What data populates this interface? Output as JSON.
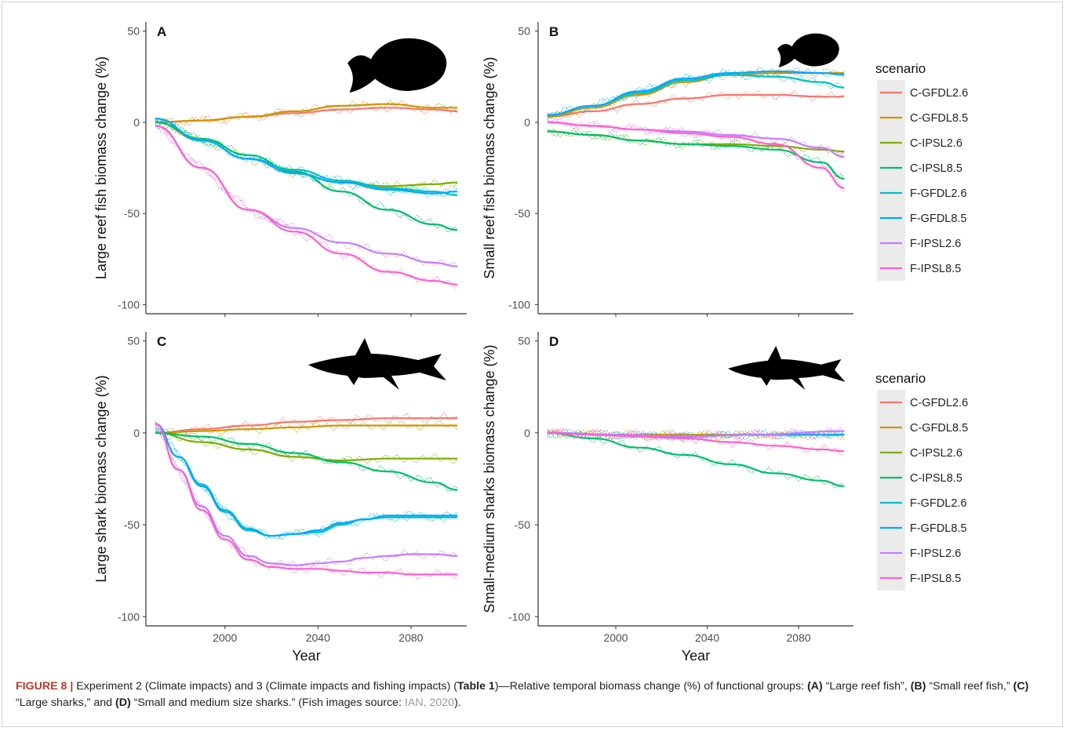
{
  "chart_data": [
    {
      "type": "line",
      "panel": "A",
      "xlabel": "",
      "ylabel": "Large reef fish biomass change (%)",
      "ylim": [
        -105,
        55
      ],
      "xlim": [
        1966,
        2104
      ],
      "x_ticks": [
        "2000",
        "2040",
        "2080"
      ],
      "y_ticks": [
        "50",
        "0",
        "-50",
        "-100"
      ],
      "icon": "fish-large-silhouette",
      "series": [
        {
          "name": "C-GFDL2.6",
          "x": [
            1970,
            1990,
            2010,
            2030,
            2050,
            2070,
            2090,
            2100
          ],
          "values": [
            0,
            1,
            3,
            5,
            7,
            8,
            7,
            6
          ]
        },
        {
          "name": "C-GFDL8.5",
          "x": [
            1970,
            1990,
            2010,
            2030,
            2050,
            2070,
            2090,
            2100
          ],
          "values": [
            0,
            1,
            3,
            6,
            9,
            10,
            8,
            8
          ]
        },
        {
          "name": "C-IPSL2.6",
          "x": [
            1970,
            1990,
            2010,
            2030,
            2050,
            2070,
            2090,
            2100
          ],
          "values": [
            0,
            -10,
            -20,
            -28,
            -33,
            -35,
            -34,
            -33
          ]
        },
        {
          "name": "C-IPSL8.5",
          "x": [
            1970,
            1990,
            2010,
            2030,
            2050,
            2070,
            2090,
            2100
          ],
          "values": [
            0,
            -9,
            -18,
            -27,
            -38,
            -48,
            -56,
            -59
          ]
        },
        {
          "name": "F-GFDL2.6",
          "x": [
            1970,
            1990,
            2010,
            2030,
            2050,
            2070,
            2090,
            2100
          ],
          "values": [
            2,
            -10,
            -20,
            -26,
            -32,
            -36,
            -38,
            -40
          ]
        },
        {
          "name": "F-GFDL8.5",
          "x": [
            1970,
            1990,
            2010,
            2030,
            2050,
            2070,
            2090,
            2100
          ],
          "values": [
            2,
            -10,
            -20,
            -28,
            -33,
            -37,
            -39,
            -38
          ]
        },
        {
          "name": "F-IPSL2.6",
          "x": [
            1970,
            1990,
            2010,
            2030,
            2050,
            2070,
            2090,
            2100
          ],
          "values": [
            -2,
            -25,
            -48,
            -58,
            -66,
            -72,
            -77,
            -79
          ]
        },
        {
          "name": "F-IPSL8.5",
          "x": [
            1970,
            1990,
            2010,
            2030,
            2050,
            2070,
            2090,
            2100
          ],
          "values": [
            -2,
            -25,
            -48,
            -60,
            -72,
            -82,
            -87,
            -89
          ]
        }
      ]
    },
    {
      "type": "line",
      "panel": "B",
      "xlabel": "",
      "ylabel": "Small reef fish biomass change (%)",
      "ylim": [
        -105,
        55
      ],
      "xlim": [
        1966,
        2104
      ],
      "x_ticks": [
        "2000",
        "2040",
        "2080"
      ],
      "y_ticks": [
        "50",
        "0",
        "-50",
        "-100"
      ],
      "icon": "fish-small-silhouette",
      "series": [
        {
          "name": "C-GFDL2.6",
          "x": [
            1970,
            1990,
            2010,
            2030,
            2050,
            2070,
            2090,
            2100
          ],
          "values": [
            3,
            6,
            10,
            13,
            15,
            15,
            14,
            14
          ]
        },
        {
          "name": "C-GFDL8.5",
          "x": [
            1970,
            1990,
            2010,
            2030,
            2050,
            2070,
            2090,
            2100
          ],
          "values": [
            3,
            8,
            15,
            22,
            26,
            27,
            27,
            27
          ]
        },
        {
          "name": "C-IPSL2.6",
          "x": [
            1970,
            1990,
            2010,
            2030,
            2050,
            2070,
            2090,
            2100
          ],
          "values": [
            -5,
            -7,
            -10,
            -12,
            -12,
            -13,
            -15,
            -16
          ]
        },
        {
          "name": "C-IPSL8.5",
          "x": [
            1970,
            1990,
            2010,
            2030,
            2050,
            2070,
            2090,
            2100
          ],
          "values": [
            -5,
            -7,
            -10,
            -12,
            -13,
            -15,
            -22,
            -31
          ]
        },
        {
          "name": "F-GFDL2.6",
          "x": [
            1970,
            1990,
            2010,
            2030,
            2050,
            2070,
            2090,
            2100
          ],
          "values": [
            4,
            9,
            16,
            23,
            26,
            25,
            22,
            19
          ]
        },
        {
          "name": "F-GFDL8.5",
          "x": [
            1970,
            1990,
            2010,
            2030,
            2050,
            2070,
            2090,
            2100
          ],
          "values": [
            4,
            9,
            17,
            24,
            27,
            28,
            27,
            26
          ]
        },
        {
          "name": "F-IPSL2.6",
          "x": [
            1970,
            1990,
            2010,
            2030,
            2050,
            2070,
            2090,
            2100
          ],
          "values": [
            0,
            -2,
            -4,
            -5,
            -7,
            -9,
            -14,
            -19
          ]
        },
        {
          "name": "F-IPSL8.5",
          "x": [
            1970,
            1990,
            2010,
            2030,
            2050,
            2070,
            2090,
            2100
          ],
          "values": [
            0,
            -2,
            -4,
            -6,
            -8,
            -12,
            -25,
            -36
          ]
        }
      ]
    },
    {
      "type": "line",
      "panel": "C",
      "xlabel": "Year",
      "ylabel": "Large shark biomass change (%)",
      "ylim": [
        -105,
        55
      ],
      "xlim": [
        1966,
        2104
      ],
      "x_ticks": [
        "2000",
        "2040",
        "2080"
      ],
      "y_ticks": [
        "50",
        "0",
        "-50",
        "-100"
      ],
      "icon": "shark-large-silhouette",
      "series": [
        {
          "name": "C-GFDL2.6",
          "x": [
            1970,
            1990,
            2010,
            2030,
            2050,
            2070,
            2090,
            2100
          ],
          "values": [
            0,
            2,
            4,
            6,
            7,
            8,
            8,
            8
          ]
        },
        {
          "name": "C-GFDL8.5",
          "x": [
            1970,
            1990,
            2010,
            2030,
            2050,
            2070,
            2090,
            2100
          ],
          "values": [
            0,
            1,
            2,
            3,
            4,
            4,
            4,
            4
          ]
        },
        {
          "name": "C-IPSL2.6",
          "x": [
            1970,
            1990,
            2010,
            2030,
            2050,
            2070,
            2090,
            2100
          ],
          "values": [
            0,
            -5,
            -9,
            -13,
            -15,
            -14,
            -14,
            -14
          ]
        },
        {
          "name": "C-IPSL8.5",
          "x": [
            1970,
            1990,
            2010,
            2030,
            2050,
            2070,
            2090,
            2100
          ],
          "values": [
            0,
            -2,
            -6,
            -11,
            -16,
            -21,
            -27,
            -31
          ]
        },
        {
          "name": "F-GFDL2.6",
          "x": [
            1970,
            1980,
            1990,
            2000,
            2010,
            2020,
            2030,
            2040,
            2050,
            2060,
            2070,
            2080,
            2090,
            2100
          ],
          "values": [
            5,
            -13,
            -28,
            -42,
            -52,
            -56,
            -55,
            -54,
            -50,
            -47,
            -46,
            -46,
            -46,
            -46
          ]
        },
        {
          "name": "F-GFDL8.5",
          "x": [
            1970,
            1980,
            1990,
            2000,
            2010,
            2020,
            2030,
            2040,
            2050,
            2060,
            2070,
            2080,
            2090,
            2100
          ],
          "values": [
            5,
            -13,
            -29,
            -43,
            -53,
            -56,
            -55,
            -53,
            -49,
            -47,
            -45,
            -45,
            -45,
            -45
          ]
        },
        {
          "name": "F-IPSL2.6",
          "x": [
            1970,
            1980,
            1990,
            2000,
            2010,
            2020,
            2030,
            2040,
            2050,
            2060,
            2070,
            2080,
            2090,
            2100
          ],
          "values": [
            5,
            -20,
            -40,
            -56,
            -67,
            -71,
            -72,
            -71,
            -70,
            -68,
            -67,
            -66,
            -66,
            -67
          ]
        },
        {
          "name": "F-IPSL8.5",
          "x": [
            1970,
            1980,
            1990,
            2000,
            2010,
            2020,
            2030,
            2040,
            2050,
            2060,
            2070,
            2080,
            2090,
            2100
          ],
          "values": [
            5,
            -20,
            -42,
            -58,
            -69,
            -73,
            -74,
            -74,
            -75,
            -76,
            -76,
            -77,
            -77,
            -77
          ]
        }
      ]
    },
    {
      "type": "line",
      "panel": "D",
      "xlabel": "Year",
      "ylabel": "Small-medium sharks biomass change (%)",
      "ylim": [
        -105,
        55
      ],
      "xlim": [
        1966,
        2104
      ],
      "x_ticks": [
        "2000",
        "2040",
        "2080"
      ],
      "y_ticks": [
        "50",
        "0",
        "-50",
        "-100"
      ],
      "icon": "shark-small-silhouette",
      "series": [
        {
          "name": "C-GFDL2.6",
          "x": [
            1970,
            2000,
            2030,
            2060,
            2100
          ],
          "values": [
            0,
            -1,
            -1,
            -1,
            -1
          ]
        },
        {
          "name": "C-GFDL8.5",
          "x": [
            1970,
            2000,
            2030,
            2060,
            2100
          ],
          "values": [
            0,
            -1,
            -1,
            -1,
            -1
          ]
        },
        {
          "name": "C-IPSL2.6",
          "x": [
            1970,
            2000,
            2030,
            2060,
            2100
          ],
          "values": [
            0,
            -1,
            -2,
            -1,
            -1
          ]
        },
        {
          "name": "C-IPSL8.5",
          "x": [
            1970,
            1990,
            2010,
            2030,
            2050,
            2070,
            2090,
            2100
          ],
          "values": [
            0,
            -3,
            -8,
            -12,
            -17,
            -22,
            -26,
            -29
          ]
        },
        {
          "name": "F-GFDL2.6",
          "x": [
            1970,
            2000,
            2030,
            2060,
            2100
          ],
          "values": [
            0,
            -1,
            -2,
            -1,
            -1
          ]
        },
        {
          "name": "F-GFDL8.5",
          "x": [
            1970,
            2000,
            2030,
            2060,
            2100
          ],
          "values": [
            0,
            -1,
            -2,
            -1,
            -1
          ]
        },
        {
          "name": "F-IPSL2.6",
          "x": [
            1970,
            2000,
            2030,
            2060,
            2100
          ],
          "values": [
            0,
            -1,
            -2,
            -1,
            1
          ]
        },
        {
          "name": "F-IPSL8.5",
          "x": [
            1970,
            1990,
            2010,
            2030,
            2050,
            2070,
            2090,
            2100
          ],
          "values": [
            0,
            -1,
            -2,
            -3,
            -5,
            -7,
            -9,
            -10
          ]
        }
      ]
    }
  ],
  "legend": {
    "title": "scenario",
    "items": [
      {
        "name": "C-GFDL2.6",
        "color": "#F8766D"
      },
      {
        "name": "C-GFDL8.5",
        "color": "#CD9600"
      },
      {
        "name": "C-IPSL2.6",
        "color": "#7CAE00"
      },
      {
        "name": "C-IPSL8.5",
        "color": "#00BE67"
      },
      {
        "name": "F-GFDL2.6",
        "color": "#00BFC4"
      },
      {
        "name": "F-GFDL8.5",
        "color": "#00A9FF"
      },
      {
        "name": "F-IPSL2.6",
        "color": "#C77CFF"
      },
      {
        "name": "F-IPSL8.5",
        "color": "#FF61CC"
      }
    ]
  },
  "caption": {
    "label": "FIGURE 8 |",
    "part1": " Experiment 2 (Climate impacts) and 3 (Climate impacts and fishing impacts) (",
    "table_ref": "Table 1",
    "part2": ")—Relative temporal biomass change (%) of functional groups: ",
    "a": "(A)",
    "a_text": " “Large reef fish”, ",
    "b": "(B)",
    "b_text": " “Small reef fish,” ",
    "c": "(C)",
    "c_text": " “Large sharks,” and ",
    "d": "(D)",
    "d_text": " “Small and medium size sharks.” (Fish images source: ",
    "source": "IAN, 2020",
    "end": ")."
  }
}
